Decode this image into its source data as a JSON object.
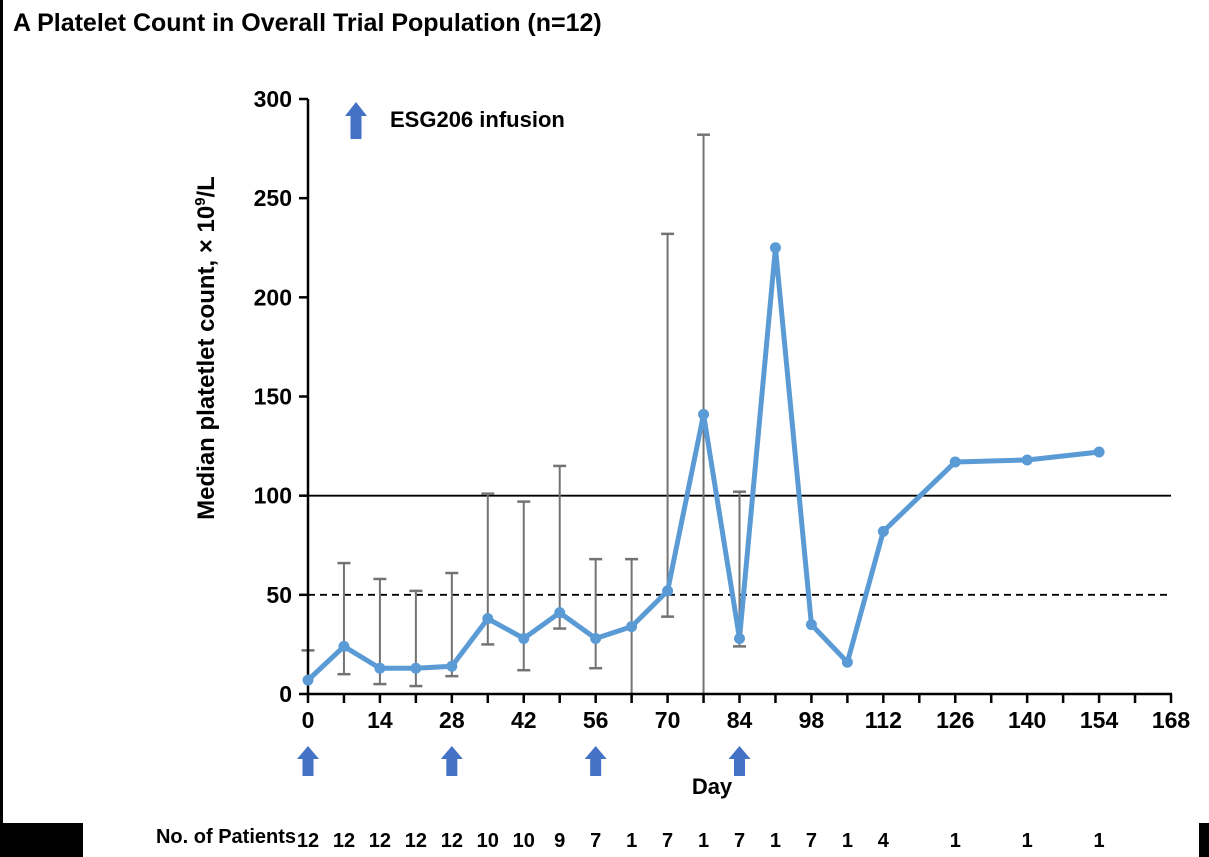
{
  "figure": {
    "title": "A Platelet Count in Overall Trial Population (n=12)"
  },
  "chart_data": {
    "type": "line",
    "title": "A Platelet Count in Overall Trial Population (n=12)",
    "xlabel": "Day",
    "ylabel": "Median platetlet count, × 10⁹/L",
    "ylabel_parts": {
      "prefix": "Median platetlet count, × 10",
      "sup": "9",
      "suffix": "/L"
    },
    "legend": {
      "label": "ESG206 infusion"
    },
    "patients_label": "No. of Patients",
    "xlim": [
      0,
      168
    ],
    "ylim": [
      0,
      300
    ],
    "x_major_ticks": [
      0,
      14,
      28,
      42,
      56,
      70,
      84,
      98,
      112,
      126,
      140,
      154,
      168
    ],
    "x_minor_step": 7,
    "y_ticks": [
      0,
      50,
      100,
      150,
      200,
      250,
      300
    ],
    "reference_lines": [
      {
        "y": 100,
        "style": "solid"
      },
      {
        "y": 50,
        "style": "dashed"
      }
    ],
    "infusion_days": [
      0,
      28,
      56,
      84
    ],
    "series": [
      {
        "name": "Median platelet count",
        "color": "#5B9BD5",
        "points": [
          {
            "day": 0,
            "value": 7,
            "lo": null,
            "hi": 22
          },
          {
            "day": 7,
            "value": 24,
            "lo": 10,
            "hi": 66
          },
          {
            "day": 14,
            "value": 13,
            "lo": 5,
            "hi": 58
          },
          {
            "day": 21,
            "value": 13,
            "lo": 4,
            "hi": 52
          },
          {
            "day": 28,
            "value": 14,
            "lo": 9,
            "hi": 61
          },
          {
            "day": 35,
            "value": 38,
            "lo": 25,
            "hi": 101
          },
          {
            "day": 42,
            "value": 28,
            "lo": 12,
            "hi": 97
          },
          {
            "day": 49,
            "value": 41,
            "lo": 33,
            "hi": 115
          },
          {
            "day": 56,
            "value": 28,
            "lo": 13,
            "hi": 68
          },
          {
            "day": 63,
            "value": 34,
            "lo": 0,
            "hi": 68
          },
          {
            "day": 70,
            "value": 52,
            "lo": 39,
            "hi": 232
          },
          {
            "day": 77,
            "value": 141,
            "lo": 0,
            "hi": 282
          },
          {
            "day": 84,
            "value": 28,
            "lo": 24,
            "hi": 102
          },
          {
            "day": 91,
            "value": 225,
            "lo": null,
            "hi": null
          },
          {
            "day": 98,
            "value": 35,
            "lo": null,
            "hi": null
          },
          {
            "day": 105,
            "value": 16,
            "lo": null,
            "hi": null
          },
          {
            "day": 112,
            "value": 82,
            "lo": null,
            "hi": null
          },
          {
            "day": 126,
            "value": 117,
            "lo": null,
            "hi": null
          },
          {
            "day": 140,
            "value": 118,
            "lo": null,
            "hi": null
          },
          {
            "day": 154,
            "value": 122,
            "lo": null,
            "hi": null
          }
        ]
      }
    ],
    "no_of_patients": [
      {
        "day": 0,
        "n": 12
      },
      {
        "day": 7,
        "n": 12
      },
      {
        "day": 14,
        "n": 12
      },
      {
        "day": 21,
        "n": 12
      },
      {
        "day": 28,
        "n": 12
      },
      {
        "day": 35,
        "n": 10
      },
      {
        "day": 42,
        "n": 10
      },
      {
        "day": 49,
        "n": 9
      },
      {
        "day": 56,
        "n": 7
      },
      {
        "day": 63,
        "n": 1
      },
      {
        "day": 70,
        "n": 7
      },
      {
        "day": 77,
        "n": 1
      },
      {
        "day": 84,
        "n": 7
      },
      {
        "day": 91,
        "n": 1
      },
      {
        "day": 98,
        "n": 7
      },
      {
        "day": 105,
        "n": 1
      },
      {
        "day": 112,
        "n": 4
      },
      {
        "day": 126,
        "n": 1
      },
      {
        "day": 140,
        "n": 1
      },
      {
        "day": 154,
        "n": 1
      }
    ],
    "colors": {
      "line": "#5B9BD5",
      "infusion_arrow": "#4472C4",
      "error_bar": "#737373",
      "text": "#000000"
    }
  }
}
